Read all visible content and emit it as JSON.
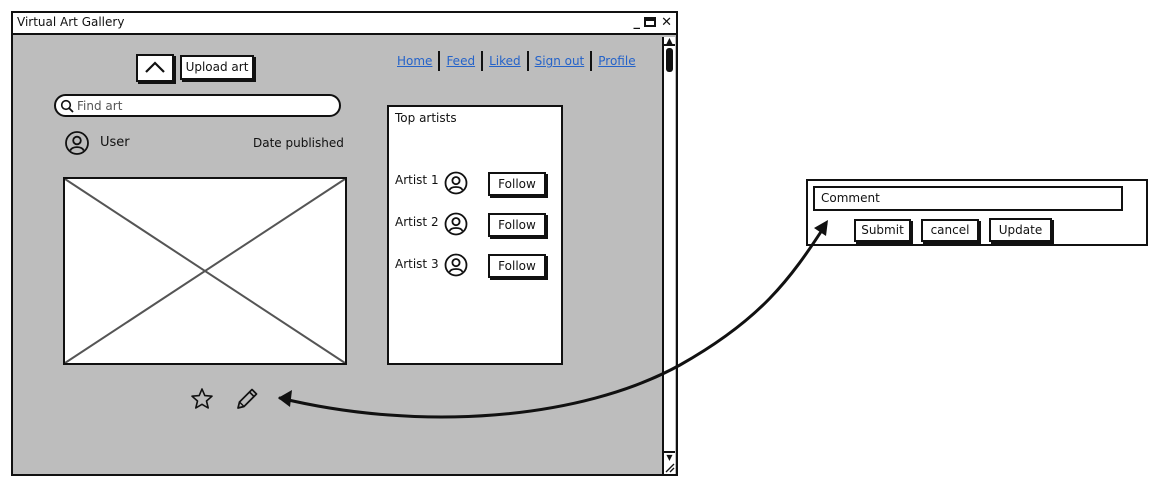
{
  "window": {
    "title": "Virtual Art Gallery",
    "controls": [
      "minimize",
      "maximize",
      "close"
    ]
  },
  "toolbar": {
    "up_icon": "chevron-up-icon",
    "upload_label": "Upload art"
  },
  "nav": {
    "links": [
      "Home",
      "Feed",
      "Liked",
      "Sign out",
      "Profile"
    ],
    "link_color": "#2563c9"
  },
  "search": {
    "placeholder": "Find art",
    "icon": "search-icon"
  },
  "post": {
    "user": "User",
    "date_label": "Date published",
    "image_icon": "image-placeholder",
    "action_icons": [
      "star-icon",
      "pencil-icon"
    ]
  },
  "top_artists": {
    "title": "Top artists",
    "artists": [
      {
        "name": "Artist 1",
        "follow_label": "Follow"
      },
      {
        "name": "Artist 2",
        "follow_label": "Follow"
      },
      {
        "name": "Artist 3",
        "follow_label": "Follow"
      }
    ]
  },
  "comment": {
    "input_label": "Comment",
    "submit_label": "Submit",
    "cancel_label": "cancel",
    "update_label": "Update"
  },
  "colors": {
    "window_bg": "#bdbdbd",
    "stroke": "#111111"
  }
}
